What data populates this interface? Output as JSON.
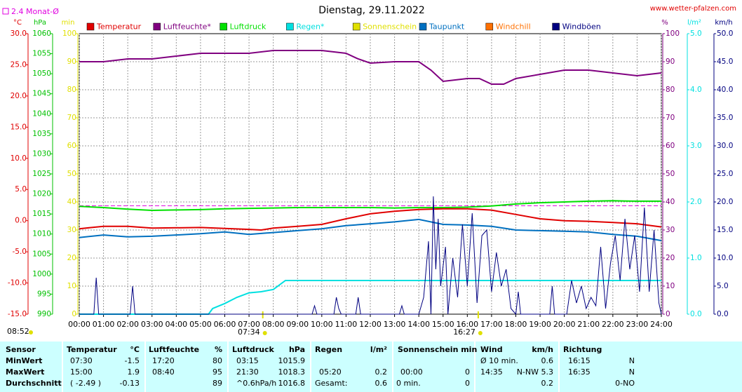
{
  "chart_data": {
    "type": "line",
    "title": "Dienstag, 29.11.2022",
    "source": "www.wetter-pfalzen.com",
    "updated": "08:52",
    "reference_line": {
      "label": "2.4 Monat-Ø",
      "value": 2.4,
      "axis": 0,
      "color": "#e000e0"
    },
    "sunrise": "07:34",
    "sunset": "16:27",
    "xlim": [
      0,
      24
    ],
    "xticks": [
      {
        "value": 0,
        "label": "00:00"
      },
      {
        "value": 1,
        "label": "01:00"
      },
      {
        "value": 2,
        "label": "02:00"
      },
      {
        "value": 3,
        "label": "03:00"
      },
      {
        "value": 4,
        "label": "04:00"
      },
      {
        "value": 5,
        "label": "05:00"
      },
      {
        "value": 6,
        "label": "06:00"
      },
      {
        "value": 7,
        "label": "07:00"
      },
      {
        "value": 8,
        "label": "08:00"
      },
      {
        "value": 9,
        "label": "09:00"
      },
      {
        "value": 10,
        "label": "10:00"
      },
      {
        "value": 11,
        "label": "11:00"
      },
      {
        "value": 12,
        "label": "12:00"
      },
      {
        "value": 13,
        "label": "13:00"
      },
      {
        "value": 14,
        "label": "14:00"
      },
      {
        "value": 15,
        "label": "15:00"
      },
      {
        "value": 16,
        "label": "16:00"
      },
      {
        "value": 17,
        "label": "17:00"
      },
      {
        "value": 18,
        "label": "18:00"
      },
      {
        "value": 19,
        "label": "19:00"
      },
      {
        "value": 20,
        "label": "20:00"
      },
      {
        "value": 21,
        "label": "21:00"
      },
      {
        "value": 22,
        "label": "22:00"
      },
      {
        "value": 23,
        "label": "23:00"
      },
      {
        "value": 24,
        "label": "24:00"
      }
    ],
    "grid": true,
    "axes": [
      {
        "unit": "°C",
        "side": "left",
        "color": "#e00000",
        "ylim": [
          -15,
          30
        ],
        "yticks": [
          {
            "value": 30,
            "label": "30.0"
          },
          {
            "value": 25,
            "label": "25.0"
          },
          {
            "value": 20,
            "label": "20.0"
          },
          {
            "value": 15,
            "label": "15.0"
          },
          {
            "value": 10,
            "label": "10.0"
          },
          {
            "value": 5,
            "label": "5.0"
          },
          {
            "value": 0,
            "label": "0.0"
          },
          {
            "value": -5,
            "label": "-5.0"
          },
          {
            "value": -10,
            "label": "-10.0"
          },
          {
            "value": -15,
            "label": "-15.0"
          }
        ]
      },
      {
        "unit": "hPa",
        "side": "left",
        "color": "#00c000",
        "ylim": [
          990,
          1060
        ],
        "yticks": [
          1060,
          1055,
          1050,
          1045,
          1040,
          1035,
          1030,
          1025,
          1020,
          1015,
          1010,
          1005,
          1000,
          995,
          990
        ]
      },
      {
        "unit": "min",
        "side": "left",
        "color": "#e0e000",
        "ylim": [
          0,
          100
        ],
        "yticks": [
          100,
          90,
          80,
          70,
          60,
          50,
          40,
          30,
          20,
          10,
          0
        ]
      },
      {
        "unit": "%",
        "side": "right",
        "color": "#800080",
        "ylim": [
          0,
          100
        ],
        "yticks": [
          100,
          90,
          80,
          70,
          60,
          50,
          40,
          30,
          20,
          10,
          0
        ]
      },
      {
        "unit": "l/m²",
        "side": "right",
        "color": "#00e0e0",
        "ylim": [
          0,
          5
        ],
        "yticks": [
          {
            "value": 5,
            "label": "5.0"
          },
          {
            "value": 4,
            "label": "4.0"
          },
          {
            "value": 3,
            "label": "3.0"
          },
          {
            "value": 2,
            "label": "2.0"
          },
          {
            "value": 1,
            "label": "1.0"
          },
          {
            "value": 0,
            "label": "0.0"
          }
        ]
      },
      {
        "unit": "km/h",
        "side": "right",
        "color": "#000080",
        "ylim": [
          0,
          50
        ],
        "yticks": [
          {
            "value": 50,
            "label": "50.0"
          },
          {
            "value": 45,
            "label": "45.0"
          },
          {
            "value": 40,
            "label": "40.0"
          },
          {
            "value": 35,
            "label": "35.0"
          },
          {
            "value": 30,
            "label": "30.0"
          },
          {
            "value": 25,
            "label": "25.0"
          },
          {
            "value": 20,
            "label": "20.0"
          },
          {
            "value": 15,
            "label": "15.0"
          },
          {
            "value": 10,
            "label": "10.0"
          },
          {
            "value": 5,
            "label": "5.0"
          },
          {
            "value": 0,
            "label": "0.0"
          }
        ]
      }
    ],
    "series": [
      {
        "name": "Temperatur",
        "color": "#e00000",
        "axis": 0,
        "x": [
          0,
          1,
          2,
          3,
          5,
          7,
          7.5,
          8,
          9,
          10,
          11,
          12,
          13,
          14,
          15,
          16,
          17,
          18,
          19,
          20,
          21,
          22,
          23,
          24
        ],
        "values": [
          -1.3,
          -0.9,
          -0.9,
          -1.2,
          -1.1,
          -1.4,
          -1.5,
          -1.2,
          -0.9,
          -0.6,
          0.3,
          1.1,
          1.5,
          1.8,
          1.9,
          1.9,
          1.7,
          1.0,
          0.3,
          0.0,
          -0.1,
          -0.3,
          -0.5,
          -1.0
        ]
      },
      {
        "name": "Luftfeuchte*",
        "color": "#800080",
        "axis": 3,
        "x": [
          0,
          1,
          2,
          3,
          4,
          5,
          6,
          7,
          8,
          9,
          10,
          11,
          11.5,
          12,
          13,
          14,
          14.5,
          15,
          16,
          16.5,
          17,
          17.5,
          18,
          19,
          20,
          21,
          22,
          23,
          24
        ],
        "values": [
          90,
          90,
          91,
          91,
          92,
          93,
          93,
          93,
          94,
          94,
          94,
          93,
          91,
          89.5,
          90,
          90,
          87,
          83,
          84,
          84,
          82,
          82,
          84,
          85.5,
          87,
          87,
          86,
          85,
          86
        ]
      },
      {
        "name": "Luftdruck",
        "color": "#00e000",
        "axis": 1,
        "x": [
          0,
          1,
          2,
          3,
          4,
          5,
          6,
          7,
          8,
          9,
          10,
          11,
          12,
          13,
          14,
          15,
          16,
          17,
          18,
          19,
          20,
          21,
          22,
          23,
          24
        ],
        "values": [
          1016.9,
          1016.6,
          1016.2,
          1015.9,
          1016.0,
          1016.1,
          1016.3,
          1016.4,
          1016.5,
          1016.6,
          1016.6,
          1016.6,
          1016.6,
          1016.5,
          1016.6,
          1016.6,
          1016.7,
          1017.0,
          1017.5,
          1017.8,
          1018.0,
          1018.2,
          1018.3,
          1018.2,
          1018.2
        ]
      },
      {
        "name": "Regen*",
        "color": "#00e0e0",
        "axis": 4,
        "x": [
          0,
          5.33,
          5.5,
          6,
          6.5,
          7,
          7.5,
          8,
          8.5,
          9,
          24
        ],
        "values": [
          0,
          0,
          0.1,
          0.19,
          0.3,
          0.38,
          0.4,
          0.44,
          0.6,
          0.6,
          0.6
        ]
      },
      {
        "name": "Sonnenschein",
        "color": "#e0e000",
        "axis": 2,
        "x": [],
        "values": []
      },
      {
        "name": "Taupunkt",
        "color": "#0070c0",
        "axis": 0,
        "x": [
          0,
          1,
          2,
          3,
          4,
          5,
          6,
          7,
          8,
          9,
          10,
          11,
          12,
          13,
          14,
          15,
          16,
          17,
          18,
          19,
          20,
          21,
          22,
          23,
          24
        ],
        "values": [
          -2.7,
          -2.3,
          -2.6,
          -2.5,
          -2.3,
          -2.1,
          -1.8,
          -2.2,
          -1.9,
          -1.6,
          -1.3,
          -0.8,
          -0.5,
          -0.2,
          0.2,
          -0.6,
          -0.7,
          -0.9,
          -1.5,
          -1.6,
          -1.7,
          -1.8,
          -2.2,
          -2.5,
          -3.2
        ]
      },
      {
        "name": "Windchill",
        "color": "#ff7000",
        "axis": 0,
        "x": [],
        "values": []
      },
      {
        "name": "Windböen",
        "color": "#000080",
        "axis": 5,
        "x": [
          0,
          0.6,
          0.7,
          0.8,
          2.1,
          2.2,
          2.3,
          9.6,
          9.7,
          9.8,
          10.5,
          10.6,
          10.7,
          10.8,
          11.4,
          11.5,
          11.6,
          13.2,
          13.3,
          13.4,
          14.0,
          14.2,
          14.4,
          14.5,
          14.6,
          14.7,
          14.8,
          14.9,
          15.1,
          15.2,
          15.4,
          15.6,
          15.8,
          16.0,
          16.2,
          16.4,
          16.6,
          16.8,
          17.0,
          17.2,
          17.4,
          17.6,
          17.8,
          18.0,
          18.1,
          18.2,
          19.4,
          19.5,
          19.6,
          20.1,
          20.3,
          20.5,
          20.7,
          20.9,
          21.1,
          21.3,
          21.5,
          21.7,
          21.9,
          22.1,
          22.3,
          22.5,
          22.7,
          22.9,
          23.1,
          23.3,
          23.5,
          23.7,
          23.9,
          24
        ],
        "values": [
          0,
          0,
          6.5,
          0,
          0,
          5,
          0,
          0,
          1.5,
          0,
          0,
          3,
          1,
          0,
          0,
          3,
          0,
          0,
          1.5,
          0,
          0,
          3,
          13,
          0,
          21,
          8,
          17,
          5,
          12,
          0,
          10,
          3,
          16,
          5,
          18,
          2,
          14,
          15,
          4,
          11,
          5,
          8,
          1,
          0,
          4,
          0,
          0,
          5,
          0,
          0,
          6,
          2,
          5,
          1,
          3,
          1.5,
          12,
          1,
          9,
          14,
          6,
          17,
          8,
          14,
          4,
          19,
          4,
          15,
          2,
          0
        ]
      }
    ]
  },
  "table": {
    "header": [
      "Sensor",
      "Temperatur",
      "°C",
      "Luftfeuchte",
      "%",
      "Luftdruck",
      "hPa",
      "Regen",
      "l/m²",
      "Sonnenschein min",
      null,
      "Wind",
      "km/h",
      "Richtung",
      null
    ],
    "rows": [
      [
        "MinWert",
        "07:30",
        "-1.5",
        "17:20",
        "80",
        "03:15",
        "1015.9",
        null,
        null,
        null,
        null,
        "Ø 10 min.",
        "0.6",
        "16:15",
        "N"
      ],
      [
        "MaxWert",
        "15:00",
        "1.9",
        "08:40",
        "95",
        "21:30",
        "1018.3",
        "05:20",
        "0.2",
        "00:00",
        "0",
        "14:35",
        "N-NW 5.3",
        "16:35",
        "N"
      ],
      [
        "Durchschnitt",
        "( -2.49 )",
        "-0.13",
        null,
        "89",
        "^0.6hPa/h",
        "1016.8",
        "Gesamt:",
        "0.6",
        "0 min.",
        "0",
        null,
        "0.2",
        null,
        "0-NO"
      ]
    ]
  }
}
